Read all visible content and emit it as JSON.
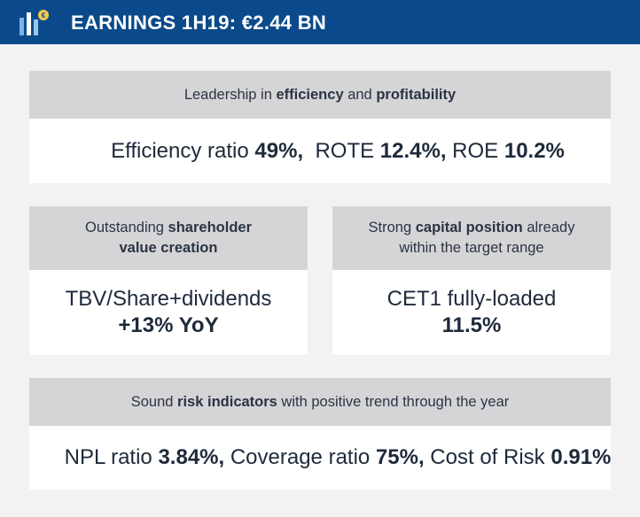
{
  "header": {
    "title": "EARNINGS 1H19: €2.44 BN",
    "colors": {
      "background": "#0a4a8a",
      "logo_accent": "#f5c84b"
    },
    "logo_icon": "bar-chart-coin-icon"
  },
  "cards": {
    "efficiency": {
      "head": {
        "t1": "Leadership in ",
        "b1": "efficiency",
        "t2": " and ",
        "b2": "profitability"
      },
      "body": {
        "t1": "Efficiency ratio ",
        "b1": "49%,",
        "t2": "  ROTE ",
        "b2": "12.4%,",
        "t3": " ROE ",
        "b3": "10.2%"
      }
    },
    "shareholder": {
      "head": {
        "t1": "Outstanding ",
        "b1": "shareholder",
        "b2": "value creation"
      },
      "body": {
        "t1": "TBV/Share+dividends",
        "b1": "+13% YoY"
      }
    },
    "capital": {
      "head": {
        "t1": "Strong ",
        "b1": "capital position",
        "t2": " already",
        "t3": "within the target range"
      },
      "body": {
        "t1": "CET1 fully-loaded",
        "b1": "11.5%"
      }
    },
    "risk": {
      "head": {
        "t1": "Sound ",
        "b1": "risk indicators",
        "t2": " with positive trend through the year"
      },
      "body": {
        "t1": "NPL ratio ",
        "b1": "3.84%,",
        "t2": " Coverage ratio ",
        "b2": "75%,",
        "t3": " Cost of Risk ",
        "b3": "0.91%"
      }
    }
  }
}
